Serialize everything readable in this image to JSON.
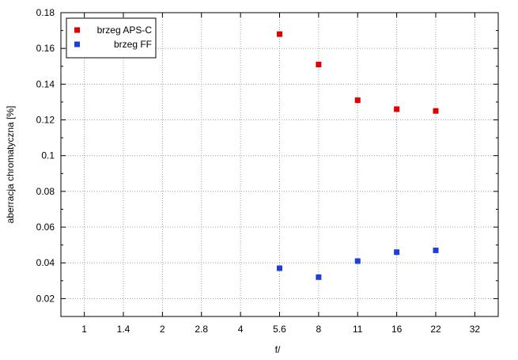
{
  "chart_data": {
    "type": "scatter",
    "xlabel": "f/",
    "ylabel": "aberracja chromatyczna [%]",
    "x_categories": [
      "1",
      "1.4",
      "2",
      "2.8",
      "4",
      "5.6",
      "8",
      "11",
      "16",
      "22",
      "32"
    ],
    "ylim": [
      0.01,
      0.18
    ],
    "y_ticks": [
      "0.02",
      "0.04",
      "0.06",
      "0.08",
      "0.1",
      "0.12",
      "0.14",
      "0.16",
      "0.18"
    ],
    "grid": true,
    "legend_position": "top-left",
    "series": [
      {
        "name": "brzeg APS-C",
        "color": "#e00000",
        "points": [
          {
            "x": "5.6",
            "y": 0.168
          },
          {
            "x": "8",
            "y": 0.151
          },
          {
            "x": "11",
            "y": 0.131
          },
          {
            "x": "16",
            "y": 0.126
          },
          {
            "x": "22",
            "y": 0.125
          }
        ]
      },
      {
        "name": "brzeg FF",
        "color": "#1c3fd8",
        "points": [
          {
            "x": "5.6",
            "y": 0.037
          },
          {
            "x": "8",
            "y": 0.032
          },
          {
            "x": "11",
            "y": 0.041
          },
          {
            "x": "16",
            "y": 0.046
          },
          {
            "x": "22",
            "y": 0.047
          }
        ]
      }
    ]
  }
}
